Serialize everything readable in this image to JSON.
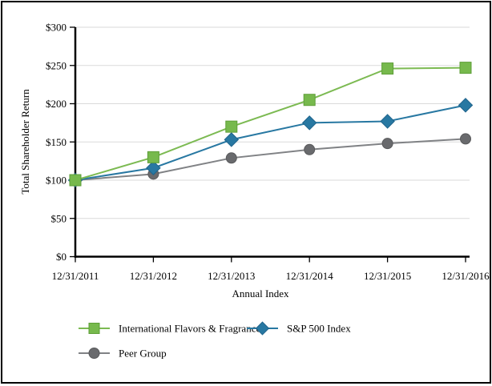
{
  "chart_data": {
    "type": "line",
    "title": "",
    "xlabel": "Annual Index",
    "ylabel": "Total Shareholder Return",
    "categories": [
      "12/31/2011",
      "12/31/2012",
      "12/31/2013",
      "12/31/2014",
      "12/31/2015",
      "12/31/2016"
    ],
    "ylim": [
      0,
      300
    ],
    "y_tick_step": 50,
    "y_tick_labels": [
      "$0",
      "$50",
      "$100",
      "$150",
      "$200",
      "$250",
      "$300"
    ],
    "grid": true,
    "legend_position": "bottom",
    "series": [
      {
        "name": "International Flavors & Fragrances",
        "marker": "square",
        "color": "#77B94D",
        "stroke": "#5E9E38",
        "line_color": "#7CBA52",
        "values": [
          100,
          130,
          170,
          205,
          246,
          247
        ]
      },
      {
        "name": "S&P 500 Index",
        "marker": "diamond",
        "color": "#2878A2",
        "stroke": "#1F648C",
        "line_color": "#2878A2",
        "values": [
          100,
          116,
          153,
          175,
          177,
          198
        ]
      },
      {
        "name": "Peer Group",
        "marker": "circle",
        "color": "#696A6D",
        "stroke": "#58595B",
        "line_color": "#808285",
        "values": [
          100,
          108,
          129,
          140,
          148,
          154
        ]
      }
    ]
  },
  "colors": {
    "axis": "#000000",
    "gridline": "#DADADA",
    "background": "#FFFFFF",
    "frame_border": "#000000",
    "text": "#000000"
  }
}
